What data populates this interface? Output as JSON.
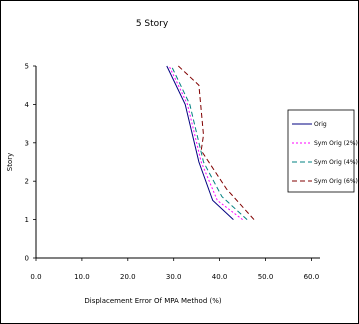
{
  "chart_data": {
    "type": "line",
    "title": "5 Story",
    "xlabel": "Displacement Error Of MPA Method (%)",
    "ylabel": "Story",
    "xlim": [
      0,
      60
    ],
    "ylim": [
      0,
      5
    ],
    "x_ticks": [
      "0.0",
      "10.0",
      "20.0",
      "30.0",
      "40.0",
      "50.0",
      "60.0"
    ],
    "y_ticks": [
      "0",
      "1",
      "2",
      "3",
      "4",
      "5"
    ],
    "legend_position": "right",
    "series": [
      {
        "name": "Orig",
        "color": "#000080",
        "dash": "solid",
        "points": [
          [
            43,
            1
          ],
          [
            38.5,
            1.5
          ],
          [
            35.5,
            2.5
          ],
          [
            32.5,
            4
          ],
          [
            28.5,
            5
          ]
        ]
      },
      {
        "name": "Sym Orig (2%)",
        "color": "#ff00ff",
        "dash": "dotted",
        "points": [
          [
            45,
            1
          ],
          [
            39.5,
            1.5
          ],
          [
            36,
            2.5
          ],
          [
            33,
            4
          ],
          [
            29,
            5
          ]
        ]
      },
      {
        "name": "Sym Orig (4%)",
        "color": "#008080",
        "dash": "dashed",
        "points": [
          [
            46,
            1
          ],
          [
            40.5,
            1.6
          ],
          [
            36.5,
            2.5
          ],
          [
            33.5,
            4
          ],
          [
            29.5,
            5
          ]
        ]
      },
      {
        "name": "Sym Orig (6%)",
        "color": "#800000",
        "dash": "dashed",
        "points": [
          [
            47.5,
            1
          ],
          [
            41.5,
            1.8
          ],
          [
            36,
            2.8
          ],
          [
            36.5,
            3.2
          ],
          [
            35.5,
            4.5
          ],
          [
            31,
            5
          ]
        ]
      }
    ]
  }
}
